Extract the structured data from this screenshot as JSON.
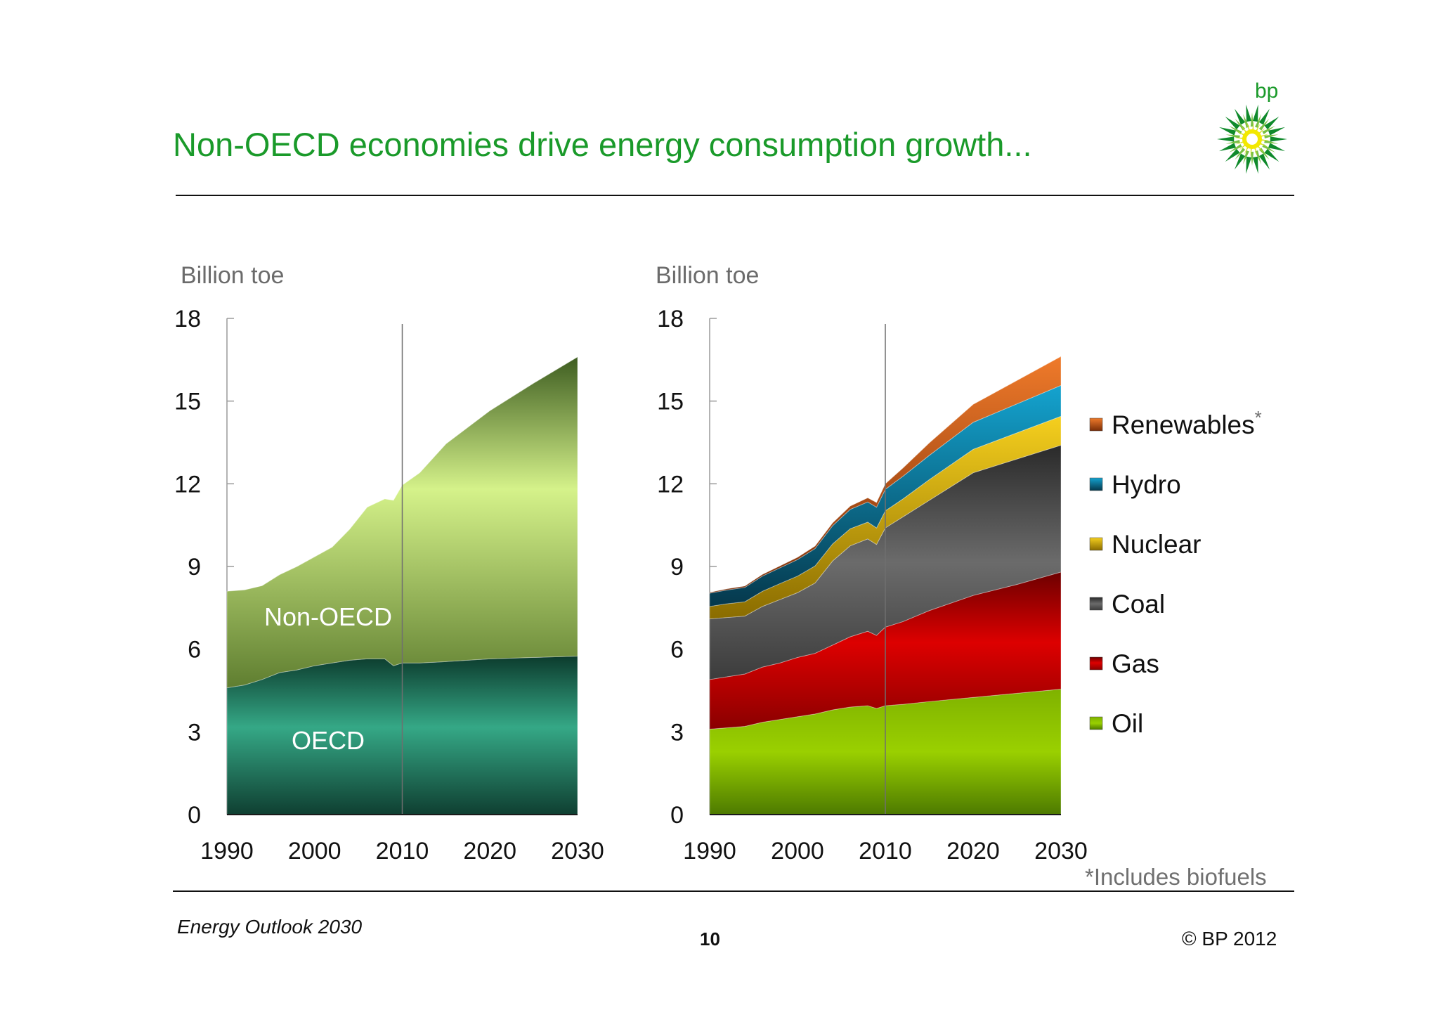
{
  "slide": {
    "title": "Non-OECD economies drive energy consumption growth...",
    "logo_text": "bp",
    "footer_left": "Energy Outlook 2030",
    "page_number": "10",
    "copyright": "© BP 2012",
    "footnote": "*Includes biofuels"
  },
  "colors": {
    "title": "#1a9a2a",
    "oecd": "#2ea383",
    "non_oecd": "#cde97f",
    "oil": "#8fc400",
    "gas": "#d40000",
    "coal": "#5e5e5e",
    "nuclear": "#e8b400",
    "hydro": "#0a87b0",
    "renewables": "#e0641c"
  },
  "chart_data": [
    {
      "type": "area",
      "stacked": true,
      "ylabel": "Billion toe",
      "ylim": [
        0,
        18
      ],
      "yticks": [
        0,
        3,
        6,
        9,
        12,
        15,
        18
      ],
      "xlim": [
        1990,
        2030
      ],
      "xticks": [
        1990,
        2000,
        2010,
        2020,
        2030
      ],
      "vertical_marker": 2010,
      "x": [
        1990,
        1992,
        1994,
        1996,
        1998,
        2000,
        2002,
        2004,
        2006,
        2008,
        2009,
        2010,
        2012,
        2015,
        2020,
        2025,
        2030
      ],
      "series": [
        {
          "name": "OECD",
          "inline_label": "OECD",
          "color": "#2ea383",
          "values": [
            4.6,
            4.7,
            4.9,
            5.15,
            5.25,
            5.4,
            5.5,
            5.6,
            5.65,
            5.65,
            5.4,
            5.5,
            5.5,
            5.55,
            5.65,
            5.7,
            5.75
          ]
        },
        {
          "name": "Non-OECD",
          "inline_label": "Non-OECD",
          "color": "#cde97f",
          "values": [
            3.5,
            3.45,
            3.4,
            3.55,
            3.75,
            3.95,
            4.2,
            4.75,
            5.5,
            5.8,
            6.0,
            6.45,
            6.9,
            7.9,
            9.0,
            9.95,
            10.85
          ]
        }
      ]
    },
    {
      "type": "area",
      "stacked": true,
      "ylabel": "Billion toe",
      "ylim": [
        0,
        18
      ],
      "yticks": [
        0,
        3,
        6,
        9,
        12,
        15,
        18
      ],
      "xlim": [
        1990,
        2030
      ],
      "xticks": [
        1990,
        2000,
        2010,
        2020,
        2030
      ],
      "vertical_marker": 2010,
      "x": [
        1990,
        1992,
        1994,
        1996,
        1998,
        2000,
        2002,
        2004,
        2006,
        2008,
        2009,
        2010,
        2012,
        2015,
        2020,
        2025,
        2030
      ],
      "series": [
        {
          "name": "Oil",
          "color": "#8fc400",
          "values": [
            3.1,
            3.15,
            3.2,
            3.35,
            3.45,
            3.55,
            3.65,
            3.8,
            3.9,
            3.95,
            3.85,
            3.95,
            4.0,
            4.1,
            4.25,
            4.4,
            4.55
          ]
        },
        {
          "name": "Gas",
          "color": "#d40000",
          "values": [
            1.8,
            1.85,
            1.9,
            2.0,
            2.05,
            2.15,
            2.2,
            2.35,
            2.55,
            2.7,
            2.65,
            2.85,
            3.0,
            3.3,
            3.7,
            3.95,
            4.25
          ]
        },
        {
          "name": "Coal",
          "color": "#5e5e5e",
          "values": [
            2.2,
            2.15,
            2.1,
            2.2,
            2.3,
            2.35,
            2.55,
            3.05,
            3.3,
            3.35,
            3.3,
            3.6,
            3.8,
            4.0,
            4.45,
            4.55,
            4.6
          ]
        },
        {
          "name": "Nuclear",
          "color": "#e8b400",
          "values": [
            0.45,
            0.5,
            0.52,
            0.55,
            0.58,
            0.6,
            0.62,
            0.62,
            0.62,
            0.61,
            0.6,
            0.62,
            0.65,
            0.75,
            0.85,
            0.95,
            1.05
          ]
        },
        {
          "name": "Hydro",
          "color": "#0a87b0",
          "values": [
            0.48,
            0.5,
            0.52,
            0.55,
            0.57,
            0.6,
            0.63,
            0.66,
            0.7,
            0.73,
            0.75,
            0.78,
            0.82,
            0.88,
            0.98,
            1.05,
            1.12
          ]
        },
        {
          "name": "Renewables",
          "legend_suffix": "*",
          "color": "#e0641c",
          "values": [
            0.03,
            0.04,
            0.05,
            0.06,
            0.07,
            0.08,
            0.09,
            0.1,
            0.12,
            0.15,
            0.17,
            0.2,
            0.3,
            0.45,
            0.65,
            0.85,
            1.05
          ]
        }
      ]
    }
  ]
}
